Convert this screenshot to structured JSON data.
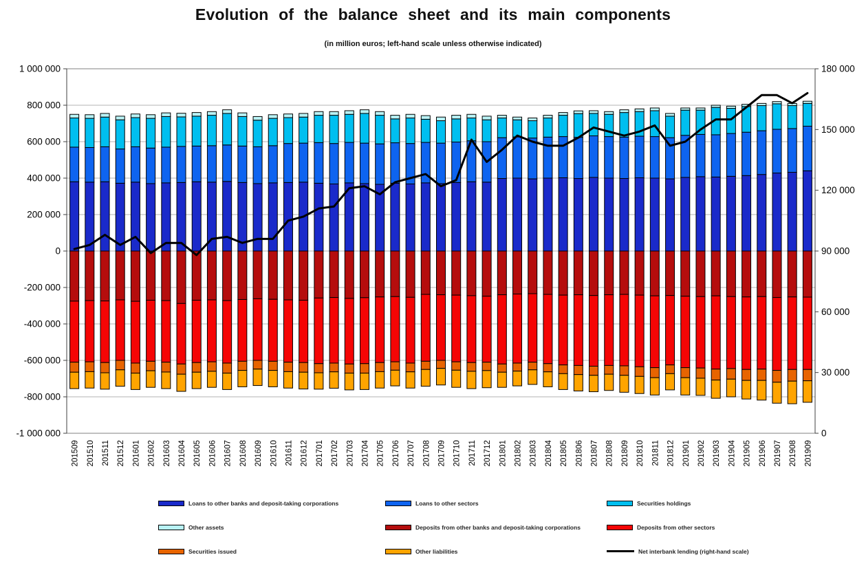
{
  "chart_data": {
    "type": "bar",
    "subtype": "stacked-bar-with-line-combo",
    "title": "Evolution of the balance sheet and its main components",
    "subtitle": "(in million euros; left-hand scale unless otherwise indicated)",
    "grid": "horizontal-on",
    "legend_position": "bottom-3-columns",
    "categories": [
      "201509",
      "201510",
      "201511",
      "201512",
      "201601",
      "201602",
      "201603",
      "201604",
      "201605",
      "201606",
      "201607",
      "201608",
      "201609",
      "201610",
      "201611",
      "201612",
      "201701",
      "201702",
      "201703",
      "201704",
      "201705",
      "201706",
      "201707",
      "201708",
      "201709",
      "201710",
      "201711",
      "201712",
      "201801",
      "201802",
      "201803",
      "201804",
      "201805",
      "201806",
      "201807",
      "201808",
      "201809",
      "201810",
      "201811",
      "201812",
      "201901",
      "201902",
      "201903",
      "201904",
      "201905",
      "201906",
      "201907",
      "201908",
      "201909"
    ],
    "left_axis": {
      "min": -1000000,
      "max": 1000000,
      "step": 200000,
      "ticks": [
        "1 000 000",
        "800 000",
        "600 000",
        "400 000",
        "200 000",
        "0",
        "-200 000",
        "-400 000",
        "-600 000",
        "-800 000",
        "-1 000 000"
      ]
    },
    "right_axis": {
      "min": 0,
      "max": 180000,
      "step": 30000,
      "ticks": [
        "180 000",
        "150 000",
        "120 000",
        "90 000",
        "60 000",
        "30 000",
        "0"
      ]
    },
    "bar_series": [
      {
        "name": "Loans to other banks and deposit-taking corporations",
        "color": "#1A2ACA",
        "stack": "assets",
        "values": [
          380000,
          378000,
          380000,
          372000,
          378000,
          370000,
          374000,
          376000,
          380000,
          378000,
          382000,
          376000,
          370000,
          374000,
          376000,
          378000,
          372000,
          368000,
          374000,
          370000,
          366000,
          372000,
          368000,
          374000,
          370000,
          376000,
          380000,
          378000,
          398000,
          400000,
          396000,
          400000,
          402000,
          398000,
          404000,
          400000,
          398000,
          402000,
          400000,
          396000,
          404000,
          408000,
          406000,
          410000,
          414000,
          420000,
          428000,
          432000,
          440000
        ]
      },
      {
        "name": "Loans to other sectors",
        "color": "#0E64F0",
        "stack": "assets",
        "values": [
          190000,
          190000,
          192000,
          188000,
          194000,
          195000,
          196000,
          198000,
          196000,
          200000,
          200000,
          200000,
          202000,
          204000,
          214000,
          214000,
          223000,
          222000,
          222000,
          222000,
          222000,
          222000,
          222000,
          222000,
          222000,
          222000,
          225000,
          222000,
          224000,
          226000,
          224000,
          225000,
          226000,
          226000,
          228000,
          228000,
          227000,
          228000,
          228000,
          226000,
          231000,
          232000,
          232000,
          235000,
          238000,
          240000,
          240000,
          240000,
          245000
        ]
      },
      {
        "name": "Securities holdings",
        "color": "#00BFF0",
        "stack": "assets",
        "values": [
          160000,
          160000,
          163000,
          160000,
          160000,
          163000,
          168000,
          162000,
          164000,
          167000,
          173000,
          162000,
          146000,
          150000,
          142000,
          143000,
          150000,
          155000,
          154000,
          163000,
          157000,
          131000,
          140000,
          127000,
          123000,
          127000,
          125000,
          120000,
          108000,
          94000,
          95000,
          105000,
          117000,
          130000,
          123000,
          122000,
          135000,
          135000,
          142000,
          118000,
          138000,
          133000,
          150000,
          138000,
          141000,
          138000,
          140000,
          126000,
          125000
        ]
      },
      {
        "name": "Other assets",
        "color": "#B8F2F5",
        "stack": "assets",
        "values": [
          20000,
          20000,
          20000,
          20000,
          20000,
          20000,
          20000,
          20000,
          20000,
          20000,
          20000,
          20000,
          20000,
          20000,
          20000,
          20000,
          20000,
          20000,
          20000,
          20000,
          20000,
          20000,
          20000,
          20000,
          20000,
          20000,
          20000,
          20000,
          15000,
          15000,
          15000,
          15000,
          15000,
          15000,
          15000,
          15000,
          15000,
          15000,
          15000,
          15000,
          12000,
          12000,
          12000,
          12000,
          12000,
          12000,
          12000,
          12000,
          12000
        ]
      },
      {
        "name": "Deposits from other banks and deposit-taking corporations",
        "color": "#B50D0D",
        "stack": "liabilities",
        "values": [
          -275000,
          -272000,
          -274000,
          -268000,
          -276000,
          -270000,
          -272000,
          -288000,
          -270000,
          -268000,
          -272000,
          -266000,
          -262000,
          -265000,
          -268000,
          -270000,
          -258000,
          -255000,
          -260000,
          -256000,
          -252000,
          -250000,
          -254000,
          -238000,
          -240000,
          -242000,
          -245000,
          -248000,
          -240000,
          -236000,
          -234000,
          -238000,
          -242000,
          -240000,
          -244000,
          -240000,
          -238000,
          -242000,
          -246000,
          -244000,
          -248000,
          -250000,
          -246000,
          -250000,
          -252000,
          -250000,
          -255000,
          -252000,
          -253000
        ]
      },
      {
        "name": "Deposits from other sectors",
        "color": "#F50505",
        "stack": "liabilities",
        "values": [
          -335000,
          -336000,
          -338000,
          -332000,
          -339000,
          -335000,
          -338000,
          -332000,
          -342000,
          -340000,
          -343000,
          -339000,
          -338000,
          -340000,
          -342000,
          -342000,
          -360000,
          -360000,
          -360000,
          -362000,
          -360000,
          -358000,
          -361000,
          -367000,
          -360000,
          -366000,
          -367000,
          -362000,
          -380000,
          -379000,
          -376000,
          -380000,
          -383000,
          -388000,
          -388000,
          -388000,
          -392000,
          -393000,
          -394000,
          -381000,
          -392000,
          -392000,
          -402000,
          -395000,
          -398000,
          -398000,
          -400000,
          -398000,
          -397000
        ]
      },
      {
        "name": "Securities issued",
        "color": "#E86400",
        "stack": "liabilities",
        "values": [
          -55000,
          -54000,
          -56000,
          -52000,
          -55000,
          -52000,
          -54000,
          -56000,
          -53000,
          -52000,
          -55000,
          -50000,
          -48000,
          -50000,
          -52000,
          -53000,
          -50000,
          -48000,
          -50000,
          -52000,
          -50000,
          -46000,
          -48000,
          -45000,
          -44000,
          -46000,
          -48000,
          -46000,
          -45000,
          -44000,
          -42000,
          -45000,
          -48000,
          -50000,
          -50000,
          -48000,
          -52000,
          -53000,
          -55000,
          -48000,
          -55000,
          -56000,
          -60000,
          -58000,
          -60000,
          -62000,
          -65000,
          -64000,
          -62000
        ]
      },
      {
        "name": "Other liabilities",
        "color": "#FFA400",
        "stack": "liabilities",
        "values": [
          -90000,
          -90000,
          -90000,
          -90000,
          -90000,
          -91000,
          -91000,
          -94000,
          -90000,
          -88000,
          -90000,
          -90000,
          -90000,
          -90000,
          -90000,
          -92000,
          -90000,
          -90000,
          -92000,
          -90000,
          -90000,
          -86000,
          -89000,
          -92000,
          -91000,
          -94000,
          -95000,
          -94000,
          -83000,
          -81000,
          -80000,
          -82000,
          -87000,
          -90000,
          -90000,
          -89000,
          -93000,
          -94000,
          -95000,
          -89000,
          -95000,
          -94000,
          -100000,
          -97000,
          -102000,
          -108000,
          -115000,
          -124000,
          -118000
        ]
      }
    ],
    "line_series": {
      "name": "Net interbank lending (right-hand scale)",
      "color": "#000000",
      "axis": "right",
      "values": [
        91000,
        93000,
        98000,
        93000,
        97000,
        89000,
        94000,
        94000,
        88000,
        96000,
        97000,
        94000,
        96000,
        96000,
        105000,
        107000,
        111000,
        112000,
        121000,
        122000,
        118000,
        124000,
        126000,
        128000,
        122000,
        125000,
        145000,
        134000,
        140000,
        147000,
        144000,
        142000,
        142000,
        146000,
        151000,
        149000,
        147000,
        149000,
        152000,
        142000,
        144000,
        150000,
        155000,
        155000,
        161000,
        167000,
        167000,
        163000,
        168000
      ]
    }
  }
}
